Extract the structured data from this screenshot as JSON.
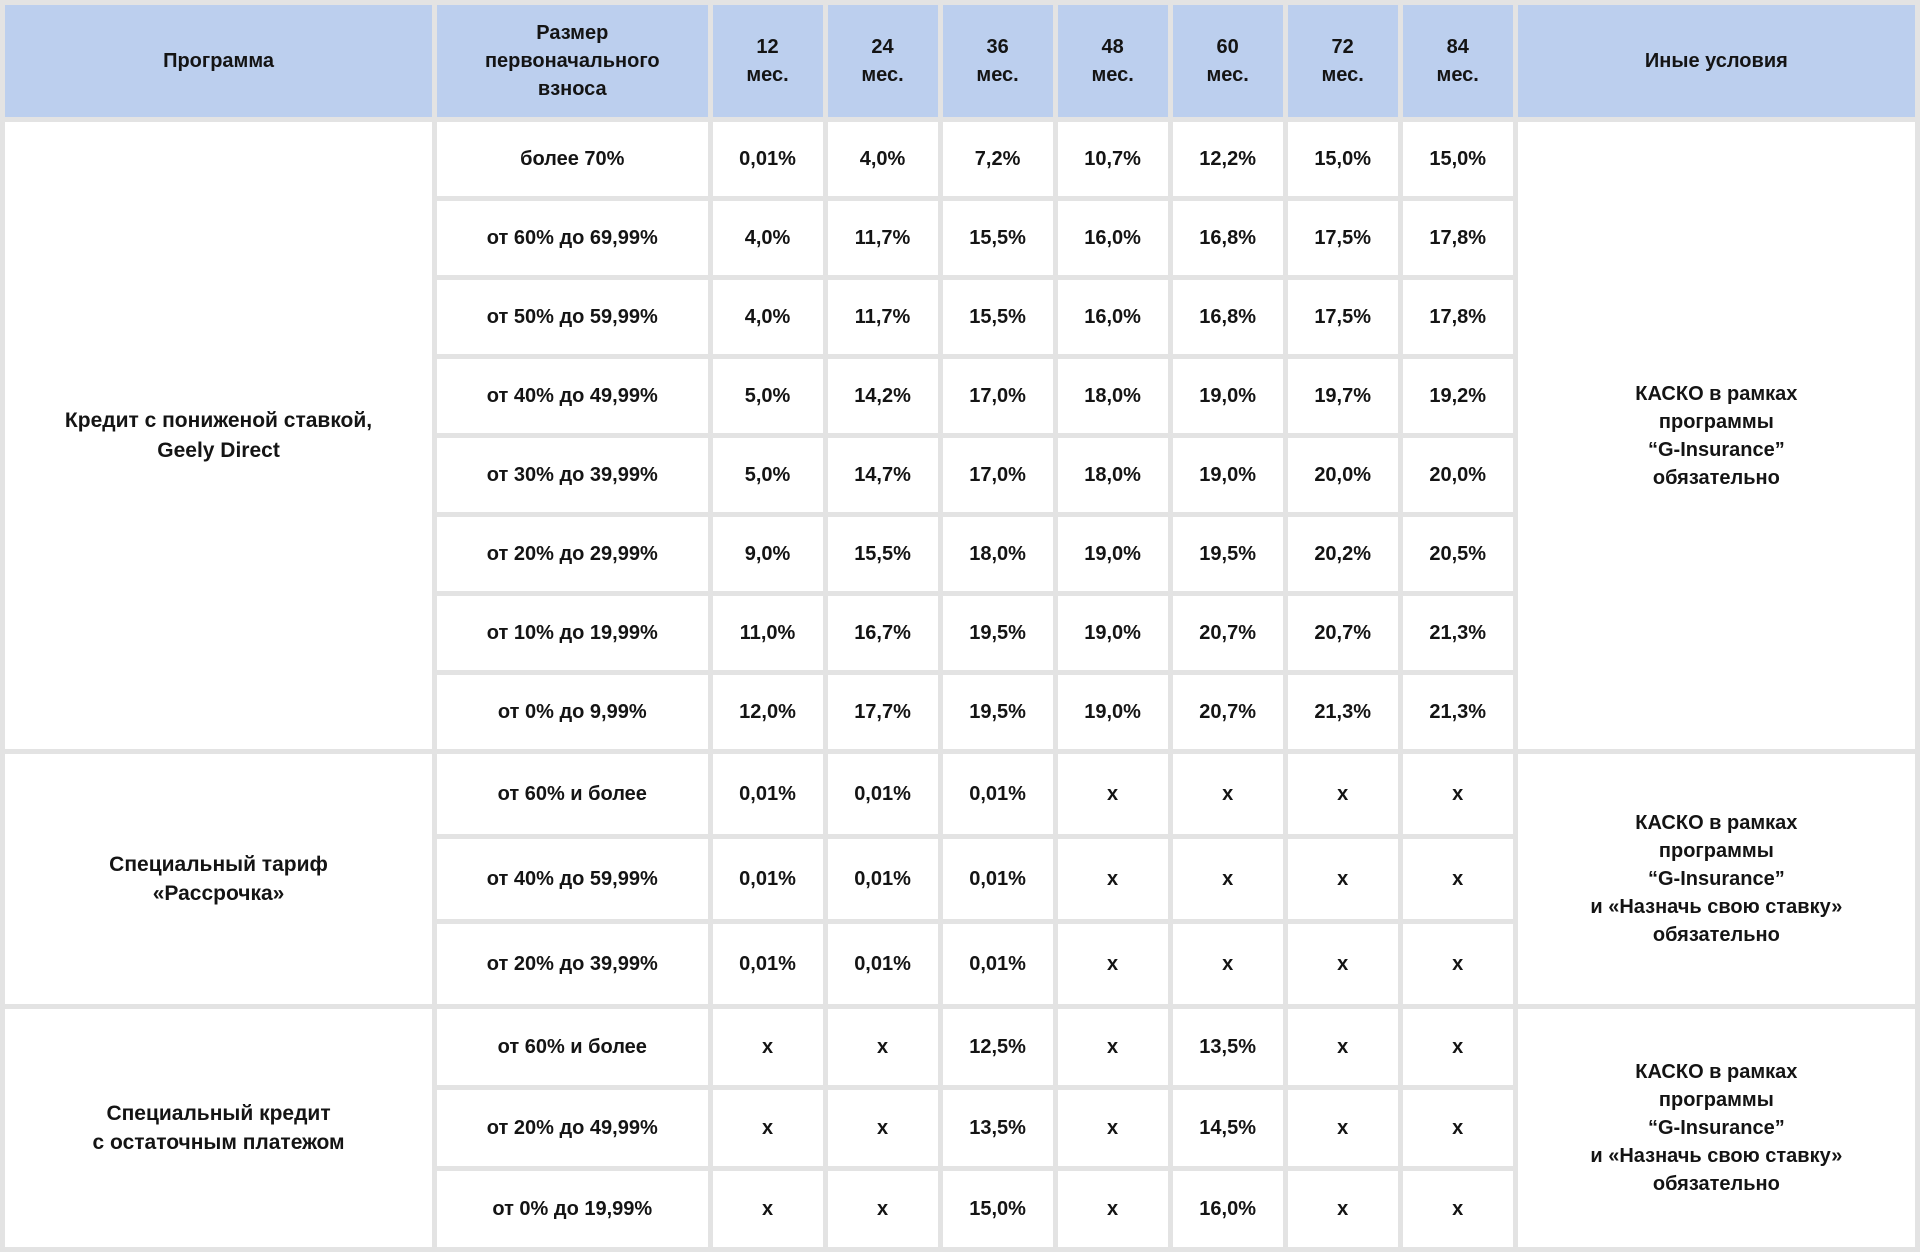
{
  "table": {
    "header": {
      "program": "Программа",
      "down_payment": "Размер\nпервоначального\nвзноса",
      "terms": [
        "12\nмес.",
        "24\nмес.",
        "36\nмес.",
        "48\nмес.",
        "60\nмес.",
        "72\nмес.",
        "84\nмес."
      ],
      "other_conditions": "Иные условия"
    },
    "groups": [
      {
        "program": "Кредит с пониженой ставкой,\nGeely Direct",
        "conditions": "КАСКО в рамках\nпрограммы\n“G-Insurance”\nобязательно",
        "rows": [
          {
            "down_payment": "более 70%",
            "rates": [
              "0,01%",
              "4,0%",
              "7,2%",
              "10,7%",
              "12,2%",
              "15,0%",
              "15,0%"
            ]
          },
          {
            "down_payment": "от 60% до 69,99%",
            "rates": [
              "4,0%",
              "11,7%",
              "15,5%",
              "16,0%",
              "16,8%",
              "17,5%",
              "17,8%"
            ]
          },
          {
            "down_payment": "от 50% до 59,99%",
            "rates": [
              "4,0%",
              "11,7%",
              "15,5%",
              "16,0%",
              "16,8%",
              "17,5%",
              "17,8%"
            ]
          },
          {
            "down_payment": "от 40% до 49,99%",
            "rates": [
              "5,0%",
              "14,2%",
              "17,0%",
              "18,0%",
              "19,0%",
              "19,7%",
              "19,2%"
            ]
          },
          {
            "down_payment": "от 30% до 39,99%",
            "rates": [
              "5,0%",
              "14,7%",
              "17,0%",
              "18,0%",
              "19,0%",
              "20,0%",
              "20,0%"
            ]
          },
          {
            "down_payment": "от 20% до 29,99%",
            "rates": [
              "9,0%",
              "15,5%",
              "18,0%",
              "19,0%",
              "19,5%",
              "20,2%",
              "20,5%"
            ]
          },
          {
            "down_payment": "от 10% до 19,99%",
            "rates": [
              "11,0%",
              "16,7%",
              "19,5%",
              "19,0%",
              "20,7%",
              "20,7%",
              "21,3%"
            ]
          },
          {
            "down_payment": "от 0% до 9,99%",
            "rates": [
              "12,0%",
              "17,7%",
              "19,5%",
              "19,0%",
              "20,7%",
              "21,3%",
              "21,3%"
            ]
          }
        ]
      },
      {
        "program": "Специальный тариф\n«Рассрочка»",
        "conditions": "КАСКО в рамках\nпрограммы\n“G-Insurance”\nи «Назначь свою ставку»\nобязательно",
        "rows": [
          {
            "down_payment": "от 60% и более",
            "rates": [
              "0,01%",
              "0,01%",
              "0,01%",
              "х",
              "х",
              "х",
              "х"
            ]
          },
          {
            "down_payment": "от 40% до 59,99%",
            "rates": [
              "0,01%",
              "0,01%",
              "0,01%",
              "х",
              "х",
              "х",
              "х"
            ]
          },
          {
            "down_payment": "от 20% до 39,99%",
            "rates": [
              "0,01%",
              "0,01%",
              "0,01%",
              "х",
              "х",
              "х",
              "х"
            ]
          }
        ]
      },
      {
        "program": "Специальный кредит\nс остаточным платежом",
        "conditions": "КАСКО в рамках\nпрограммы\n“G-Insurance”\nи «Назначь свою ставку»\nобязательно",
        "rows": [
          {
            "down_payment": "от 60% и более",
            "rates": [
              "х",
              "х",
              "12,5%",
              "х",
              "13,5%",
              "х",
              "х"
            ]
          },
          {
            "down_payment": "от 20% до 49,99%",
            "rates": [
              "х",
              "х",
              "13,5%",
              "х",
              "14,5%",
              "х",
              "х"
            ]
          },
          {
            "down_payment": "от 0% до 19,99%",
            "rates": [
              "х",
              "х",
              "15,0%",
              "х",
              "16,0%",
              "х",
              "х"
            ]
          }
        ]
      }
    ]
  },
  "colors": {
    "header_bg": "#bccfee",
    "grid": "#e3e3e3",
    "cell_bg": "#ffffff",
    "text": "#141414"
  }
}
